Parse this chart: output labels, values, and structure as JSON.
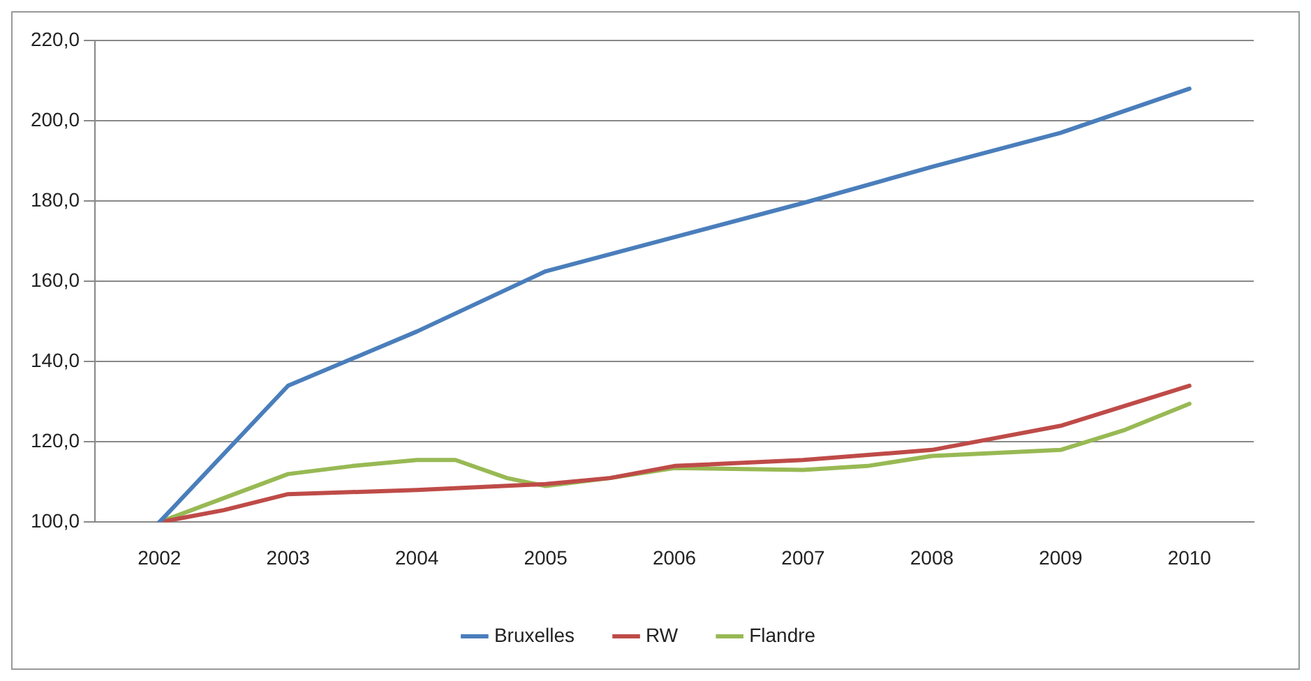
{
  "chart_data": {
    "type": "line",
    "xlim": [
      2001.5,
      2010.5
    ],
    "xticks": [
      2002,
      2003,
      2004,
      2005,
      2006,
      2007,
      2008,
      2009,
      2010
    ],
    "ylim": [
      100,
      220
    ],
    "yticks": [
      {
        "value": 100,
        "label": "100,0"
      },
      {
        "value": 120,
        "label": "120,0"
      },
      {
        "value": 140,
        "label": "140,0"
      },
      {
        "value": 160,
        "label": "160,0"
      },
      {
        "value": 180,
        "label": "180,0"
      },
      {
        "value": 200,
        "label": "200,0"
      },
      {
        "value": 220,
        "label": "220,0"
      }
    ],
    "grid": "y",
    "legend": "bottom",
    "marker": "none",
    "series": [
      {
        "name": "Bruxelles",
        "color": "#4a7ebb",
        "x": [
          2002,
          2003,
          2004,
          2005,
          2006,
          2007,
          2008,
          2009,
          2010
        ],
        "values": [
          100,
          134,
          147.5,
          162.5,
          171,
          179.5,
          188.5,
          197,
          208
        ]
      },
      {
        "name": "RW",
        "color": "#be4b48",
        "x": [
          2002,
          2002.5,
          2003,
          2004,
          2005,
          2005.5,
          2006,
          2007,
          2008,
          2008.5,
          2009,
          2009.5,
          2010
        ],
        "values": [
          100,
          103,
          107,
          108,
          109.5,
          111,
          114,
          115.5,
          118,
          121,
          124,
          129,
          134
        ]
      },
      {
        "name": "Flandre",
        "color": "#98b954",
        "x": [
          2002,
          2002.5,
          2003,
          2003.5,
          2004,
          2004.3,
          2004.7,
          2005,
          2005.5,
          2006,
          2007,
          2007.5,
          2008,
          2009,
          2009.5,
          2010
        ],
        "values": [
          100,
          106,
          112,
          114,
          115.5,
          115.5,
          111,
          109,
          111,
          113.5,
          113,
          114,
          116.5,
          118,
          123,
          129.5
        ]
      }
    ]
  }
}
